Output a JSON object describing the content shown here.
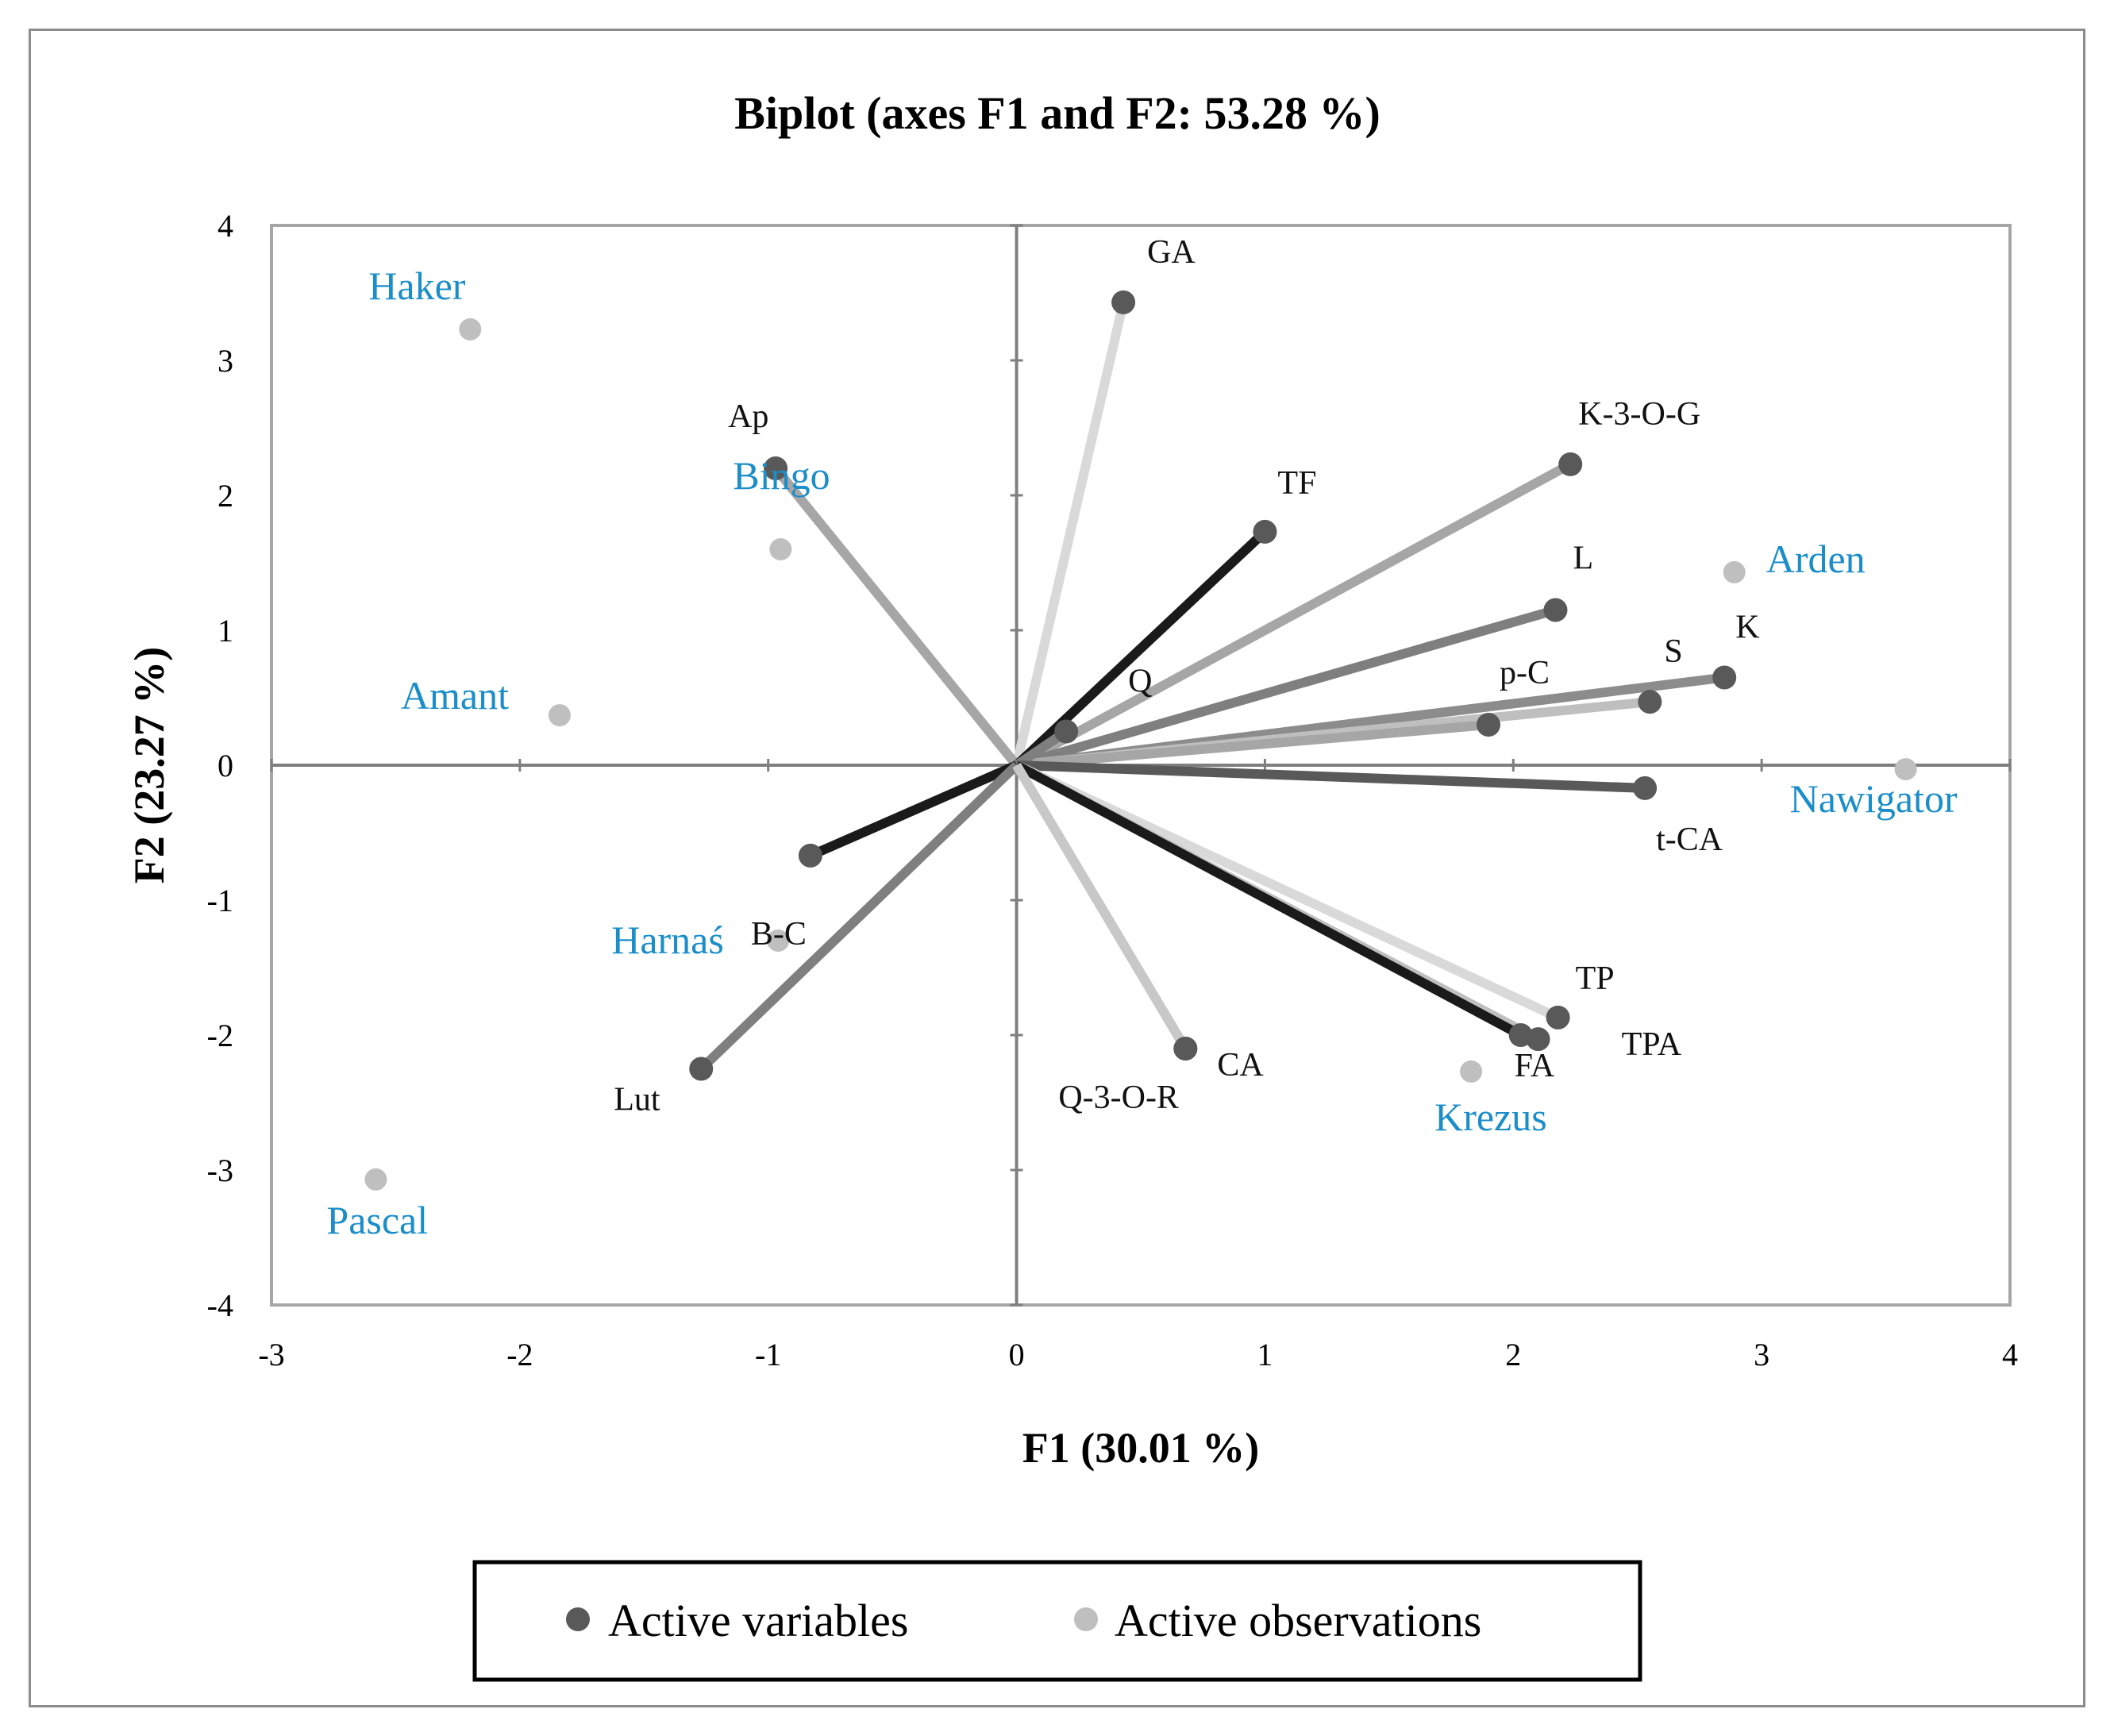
{
  "chart_data": {
    "type": "scatter",
    "subtype": "biplot",
    "title": "Biplot (axes F1 and F2: 53.28 %)",
    "xlabel": "F1 (30.01 %)",
    "ylabel": "F2 (23.27 %)",
    "xlim": [
      -3,
      4
    ],
    "ylim": [
      -4,
      4
    ],
    "xticks": [
      -3,
      -2,
      -1,
      0,
      1,
      2,
      3,
      4
    ],
    "yticks": [
      -4,
      -3,
      -2,
      -1,
      0,
      1,
      2,
      3,
      4
    ],
    "grid": false,
    "legend_position": "bottom",
    "legend": [
      {
        "label": "Active variables",
        "color": "#595959"
      },
      {
        "label": "Active observations",
        "color": "#bfbfbf"
      }
    ],
    "active_variables": [
      {
        "name": "GA",
        "x": 0.43,
        "y": 3.43,
        "line_color": "#d9d9d9"
      },
      {
        "name": "Ap",
        "x": -0.97,
        "y": 2.2,
        "line_color": "#a6a6a6"
      },
      {
        "name": "K-3-O-G",
        "x": 2.23,
        "y": 2.23,
        "line_color": "#a6a6a6"
      },
      {
        "name": "TF",
        "x": 1.0,
        "y": 1.73,
        "line_color": "#1a1a1a"
      },
      {
        "name": "L",
        "x": 2.17,
        "y": 1.15,
        "line_color": "#7f7f7f"
      },
      {
        "name": "K",
        "x": 2.85,
        "y": 0.65,
        "line_color": "#8c8c8c"
      },
      {
        "name": "S",
        "x": 2.55,
        "y": 0.47,
        "line_color": "#bfbfbf"
      },
      {
        "name": "p-C",
        "x": 1.9,
        "y": 0.3,
        "line_color": "#a6a6a6"
      },
      {
        "name": "Q",
        "x": 0.2,
        "y": 0.25,
        "line_color": "#7f7f7f"
      },
      {
        "name": "t-CA",
        "x": 2.53,
        "y": -0.17,
        "line_color": "#595959"
      },
      {
        "name": "B-C",
        "x": -0.83,
        "y": -0.67,
        "line_color": "#1a1a1a"
      },
      {
        "name": "Lut",
        "x": -1.27,
        "y": -2.25,
        "line_color": "#7f7f7f"
      },
      {
        "name": "CA",
        "x": 0.68,
        "y": -2.1,
        "line_color": "#c8c8c8"
      },
      {
        "name": "TP",
        "x": 2.18,
        "y": -1.87,
        "line_color": "#d9d9d9"
      },
      {
        "name": "TPA",
        "x": 2.1,
        "y": -2.03,
        "line_color": "#bfbfbf"
      },
      {
        "name": "FA",
        "x": 2.03,
        "y": -2.0,
        "line_color": "#1a1a1a"
      },
      {
        "name": "Q-3-O-R",
        "x": 0.68,
        "y": -2.1,
        "line_color": "#c8c8c8"
      }
    ],
    "active_observations": [
      {
        "name": "Haker",
        "x": -2.2,
        "y": 3.23
      },
      {
        "name": "Amant",
        "x": -1.84,
        "y": 0.37
      },
      {
        "name": "Bingo",
        "x": -0.95,
        "y": 1.6
      },
      {
        "name": "Arden",
        "x": 2.89,
        "y": 1.43
      },
      {
        "name": "Nawigator",
        "x": 3.58,
        "y": -0.03
      },
      {
        "name": "Harnaś",
        "x": -0.96,
        "y": -1.3
      },
      {
        "name": "Krezus",
        "x": 1.83,
        "y": -2.27
      },
      {
        "name": "Pascal",
        "x": -2.58,
        "y": -3.07
      }
    ]
  }
}
